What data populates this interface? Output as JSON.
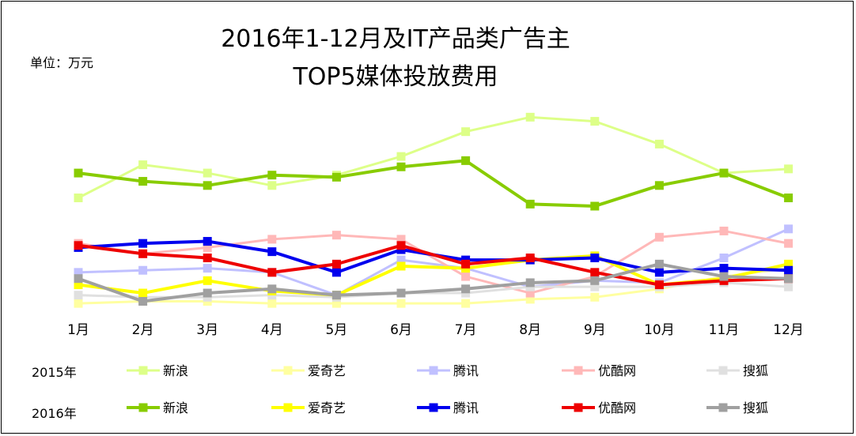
{
  "chart_data": {
    "type": "line",
    "title": "2016年1-12月及IT产品类广告主",
    "subtitle": "TOP5媒体投放费用",
    "unit_label": "单位：万元",
    "categories": [
      "1月",
      "2月",
      "3月",
      "4月",
      "5月",
      "6月",
      "7月",
      "8月",
      "9月",
      "10月",
      "11月",
      "12月"
    ],
    "legend_rows": [
      {
        "label": "2015年",
        "year": "2015"
      },
      {
        "label": "2016年",
        "year": "2016"
      }
    ],
    "ylim": [
      0,
      100
    ],
    "grid": false,
    "series": [
      {
        "name": "新浪",
        "year": "2015",
        "color": "#ddff88",
        "values": [
          54,
          70,
          66,
          60,
          65,
          74,
          86,
          93,
          91,
          80,
          66,
          68
        ]
      },
      {
        "name": "爱奇艺",
        "year": "2015",
        "color": "#ffffa0",
        "values": [
          3,
          4,
          4,
          3,
          3,
          3,
          3,
          5,
          6,
          10,
          16,
          20
        ]
      },
      {
        "name": "腾讯",
        "year": "2015",
        "color": "#c0c0ff",
        "values": [
          18,
          19,
          20,
          18,
          7,
          24,
          20,
          11,
          14,
          13,
          25,
          39
        ]
      },
      {
        "name": "优酷网",
        "year": "2015",
        "color": "#ffb8b8",
        "values": [
          32,
          27,
          30,
          34,
          36,
          34,
          16,
          8,
          16,
          35,
          38,
          32
        ]
      },
      {
        "name": "搜狐",
        "year": "2015",
        "color": "#e0e0e0",
        "values": [
          7,
          6,
          6,
          7,
          6,
          8,
          8,
          11,
          11,
          11,
          13,
          11
        ]
      },
      {
        "name": "新浪",
        "year": "2016",
        "color": "#88cc00",
        "values": [
          66,
          62,
          60,
          65,
          64,
          69,
          72,
          51,
          50,
          60,
          66,
          54
        ]
      },
      {
        "name": "爱奇艺",
        "year": "2016",
        "color": "#ffff00",
        "values": [
          12,
          8,
          14,
          9,
          7,
          21,
          20,
          24,
          26,
          12,
          15,
          22
        ]
      },
      {
        "name": "腾讯",
        "year": "2016",
        "color": "#0000ee",
        "values": [
          30,
          32,
          33,
          28,
          18,
          29,
          24,
          24,
          25,
          18,
          20,
          19
        ]
      },
      {
        "name": "优酷网",
        "year": "2016",
        "color": "#ee0000",
        "values": [
          31,
          27,
          25,
          18,
          22,
          31,
          22,
          25,
          18,
          12,
          14,
          15
        ]
      },
      {
        "name": "搜狐",
        "year": "2016",
        "color": "#a0a0a0",
        "values": [
          15,
          4,
          8,
          10,
          7,
          8,
          10,
          13,
          14,
          22,
          16,
          15
        ]
      }
    ]
  }
}
